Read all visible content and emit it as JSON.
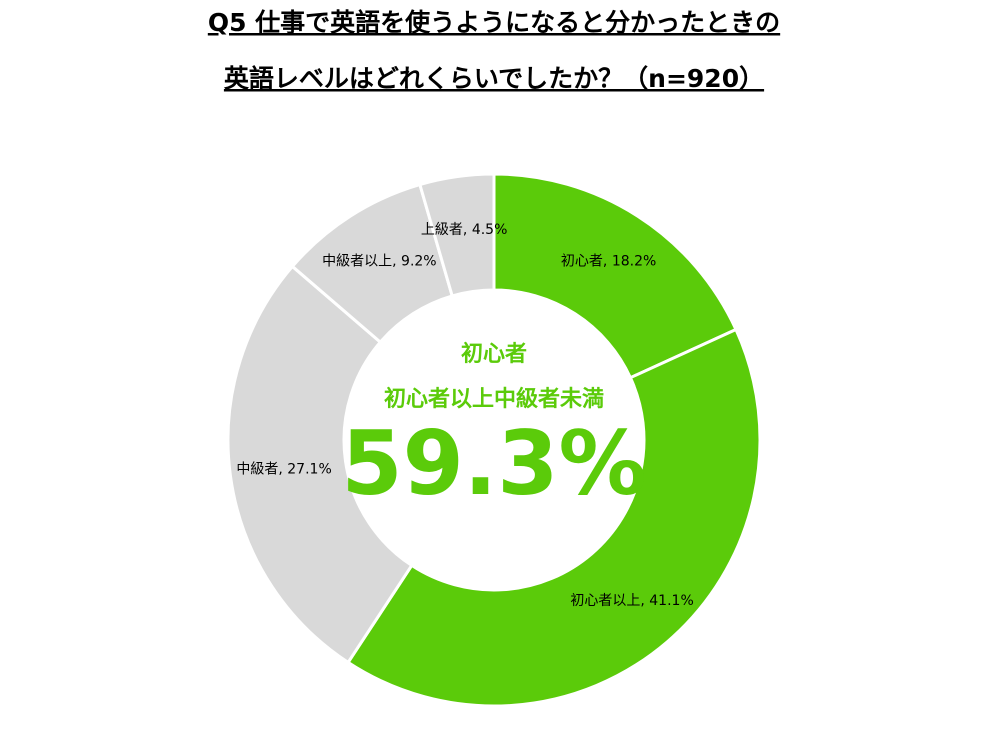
{
  "chart_data": {
    "type": "donut",
    "title": [
      "Q5 仕事で英語を使うようになると分かったときの",
      "英語レベルはどれくらいでしたか？（n=920）"
    ],
    "values": [
      18.2,
      41.1,
      27.1,
      9.2,
      4.5
    ],
    "value_labels": [
      "初心者, 18.2%",
      "初心者以上, 41.1%",
      "中級者, 27.1%",
      "中級者以上, 9.2%",
      "上級者, 4.5%"
    ],
    "colors": [
      "#5bcb0a",
      "#5bcb0a",
      "#d9d9d9",
      "#d9d9d9",
      "#d9d9d9"
    ],
    "annotations": [
      "初心者",
      "初心者以上中級者未満",
      "59.3%"
    ]
  }
}
